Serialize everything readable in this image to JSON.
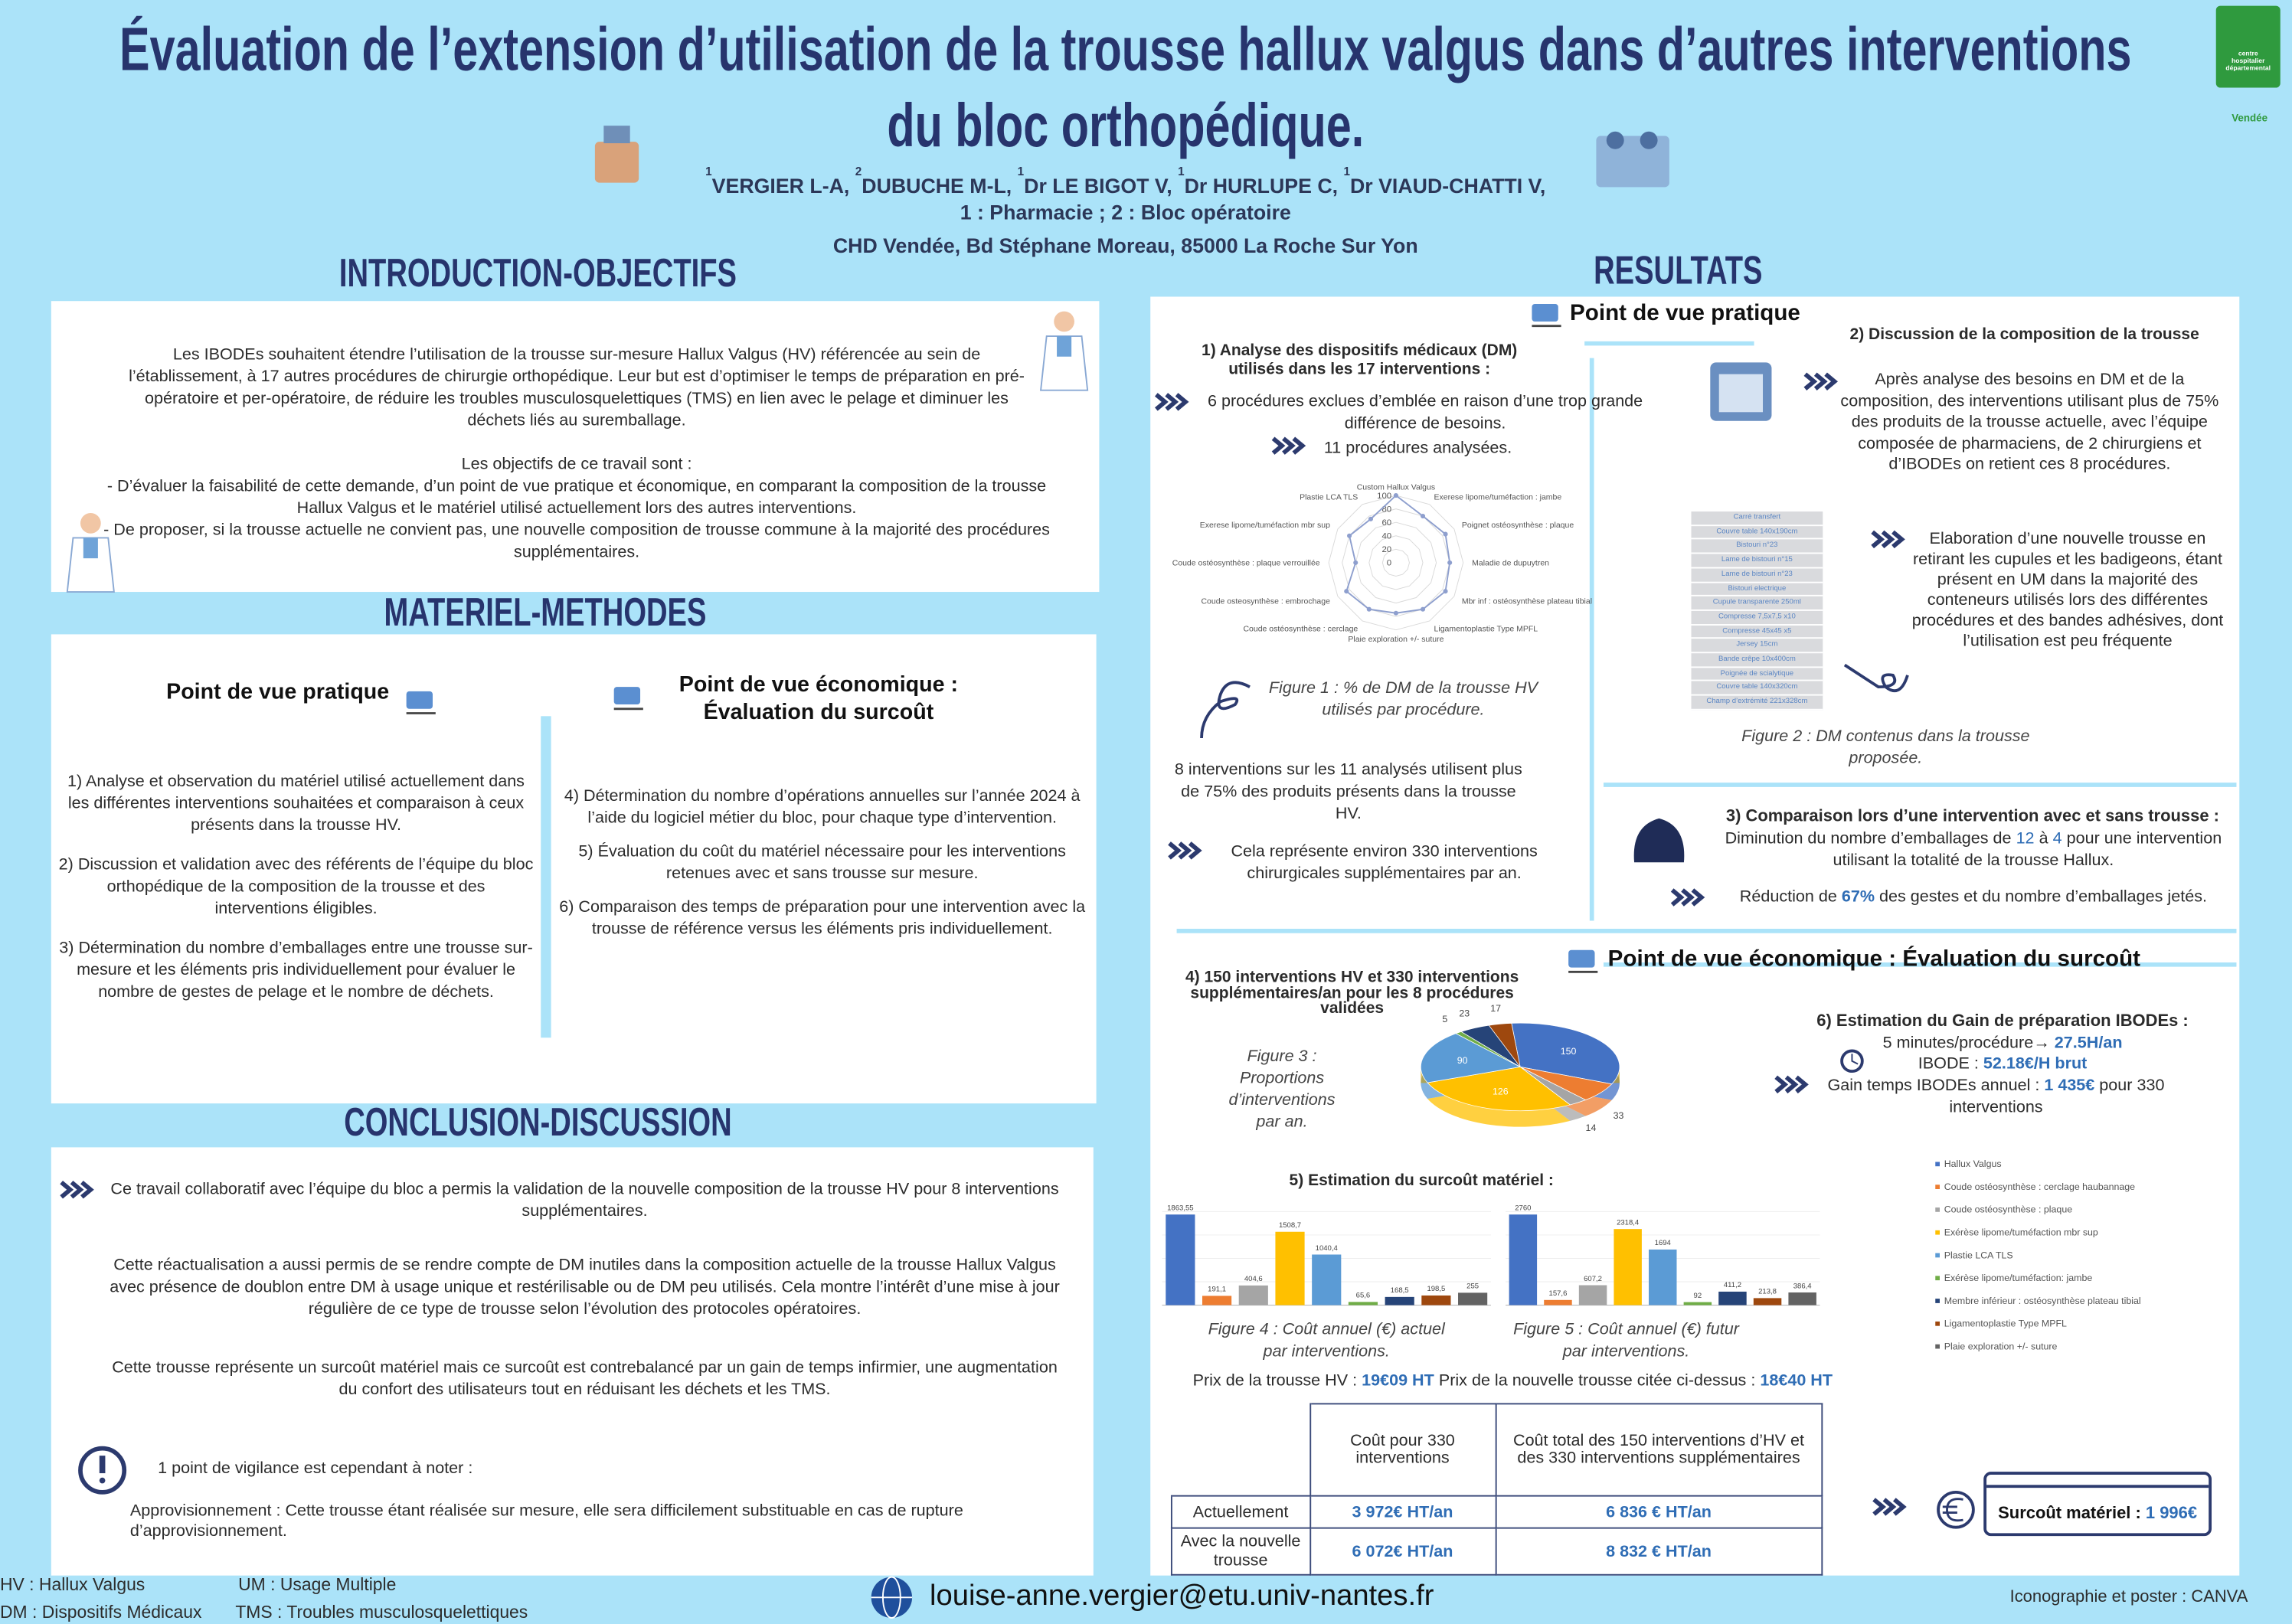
{
  "header": {
    "title_lines": [
      "Évaluation de l’extension d’utilisation de la trousse hallux valgus dans d’autres interventions",
      "du bloc orthopédique."
    ],
    "authors": [
      {
        "sup": "1",
        "name": "VERGIER L-A,"
      },
      {
        "sup": "2",
        "name": "DUBUCHE M-L,"
      },
      {
        "sup": "1",
        "name": "Dr LE BIGOT V,"
      },
      {
        "sup": "1",
        "name": "Dr HURLUPE C,"
      },
      {
        "sup": "1",
        "name": "Dr VIAUD-CHATTI V,"
      }
    ],
    "affiliations": "1 : Pharmacie ; 2 : Bloc opératoire",
    "address": "CHD Vendée, Bd Stéphane Moreau, 85000 La Roche Sur Yon",
    "logo": {
      "lines": [
        "centre",
        "hospitalier",
        "départemental"
      ],
      "place": "Vendée"
    }
  },
  "intro": {
    "heading": "INTRODUCTION-OBJECTIFS",
    "paragraphs": [
      "Les IBODEs souhaitent étendre l’utilisation de la trousse sur-mesure Hallux Valgus (HV) référencée au sein de l’établissement, à 17 autres procédures de chirurgie orthopédique. Leur but est d’optimiser le temps de préparation en pré-opératoire et per-opératoire, de réduire les troubles musculosquelettiques (TMS) en lien avec le pelage et diminuer les déchets liés au suremballage.",
      "Les objectifs de ce travail sont :",
      "- D’évaluer la faisabilité de cette demande, d’un point de vue pratique et économique, en comparant la composition de la trousse Hallux Valgus et le matériel utilisé actuellement lors des autres interventions.",
      "- De proposer, si la trousse actuelle ne convient pas, une nouvelle composition de trousse commune à la majorité des procédures supplémentaires."
    ]
  },
  "methods": {
    "heading": "MATERIEL-METHODES",
    "practical": {
      "title": "Point de vue pratique",
      "items": [
        "1) Analyse et observation du matériel utilisé actuellement dans les différentes interventions souhaitées et comparaison à ceux présents dans la trousse HV.",
        "2) Discussion et validation avec des référents de l’équipe du bloc orthopédique de la composition de la trousse et des interventions éligibles.",
        "3) Détermination du nombre d’emballages entre une trousse sur-mesure et les éléments pris individuellement pour évaluer le nombre de gestes de pelage et le nombre de déchets."
      ]
    },
    "economic": {
      "title_lines": [
        "Point de vue économique :",
        "Évaluation du surcoût"
      ],
      "items": [
        "4) Détermination du nombre d’opérations annuelles sur l’année 2024 à l’aide du logiciel métier du bloc, pour chaque type d’intervention.",
        "5) Évaluation du coût du matériel nécessaire pour les interventions retenues avec et sans trousse sur mesure.",
        "6) Comparaison des temps de préparation pour une intervention avec la trousse de référence versus les éléments pris individuellement."
      ]
    }
  },
  "conclusion": {
    "heading": "CONCLUSION-DISCUSSION",
    "paragraphs": [
      "Ce travail collaboratif avec l’équipe du bloc a permis la validation de la nouvelle composition de la trousse HV pour 8 interventions supplémentaires.",
      "Cette réactualisation a aussi permis de se rendre compte de DM inutiles dans la composition actuelle de la trousse Hallux Valgus avec présence de doublon entre DM à usage unique et restérilisable ou de DM peu utilisés. Cela montre l’intérêt d’une mise à jour régulière de ce type de trousse selon l’évolution des protocoles opératoires.",
      "Cette trousse représente un surcoût matériel mais ce surcoût est contrebalancé par un gain de temps infirmier, une augmentation du confort des utilisateurs tout en réduisant les déchets et les TMS."
    ],
    "vigilance": "1 point de vigilance est cependant à noter :",
    "supply": "Approvisionnement : Cette trousse étant réalisée sur mesure, elle sera difficilement substituable en cas de rupture d’approvisionnement."
  },
  "results": {
    "heading": "RESULTATS",
    "practical_heading": "Point de vue pratique",
    "analysis": {
      "title": "1) Analyse des dispositifs médicaux (DM) utilisés dans les 17 interventions :",
      "excluded": "6 procédures exclues d’emblée en raison d’une trop grande différence de besoins.",
      "analysed": "11 procédures analysées."
    },
    "figure1_caption": "Figure 1 : % de DM de la trousse HV utilisés par procédure.",
    "summary": "8 interventions sur les 11 analysés utilisent plus de 75% des produits présents dans la trousse HV.",
    "extra": "Cela représente environ 330 interventions chirurgicales supplémentaires par an.",
    "discussion": {
      "title": "2) Discussion de la composition de la trousse",
      "retained": "Après analyse des besoins en DM et de la composition, des interventions utilisant plus de 75% des produits de la trousse actuelle, avec l’équipe composée de pharmaciens, de 2 chirurgiens et d’IBODEs on retient ces 8 procédures.",
      "new_kit": "Elaboration d’une nouvelle trousse en retirant les cupules et les badigeons, étant présent en UM dans la majorité des conteneurs utilisés lors des différentes procédures et des bandes adhésives, dont l’utilisation est peu fréquente"
    },
    "figure2_items": [
      "Carré transfert",
      "Couvre table 140x190cm",
      "Bistouri n°23",
      "Lame de bistouri n°15",
      "Lame de bistouri n°23",
      "Bistouri electrique",
      "Cupule transparente 250ml",
      "Compresse 7,5x7,5 x10",
      "Compresse 45x45 x5",
      "Jersey 15cm",
      "Bande crêpe 10x400cm",
      "Poignée de scialytique",
      "Couvre table 140x320cm",
      "Champ d’extrémité 221x328cm"
    ],
    "figure2_caption": "Figure 2 : DM contenus dans la trousse proposée.",
    "comparison": {
      "title": "3) Comparaison lors d’une intervention avec et sans trousse :",
      "packs_before": "Diminution du nombre d’emballages de",
      "packs_from": "12",
      "packs_mid": "à",
      "packs_to": "4",
      "packs_after": "pour une intervention utilisant la totalité de la trousse Hallux.",
      "reduction_before": "Réduction de",
      "reduction_value": "67%",
      "reduction_after": "des gestes et du nombre d’emballages jetés."
    },
    "economic_heading": "Point de vue économique : Évaluation du surcoût",
    "volumes_title": "4) 150 interventions HV et 330 interventions supplémentaires/an pour les 8 procédures validées",
    "figure3_caption": "Figure 3 : Proportions d’interventions par an.",
    "gain": {
      "title": "6) Estimation du Gain de préparation IBODEs :",
      "time_label": "5 minutes/procédure→",
      "time_value": "27.5H/an",
      "rate_label": "IBODE :",
      "rate_value": "52.18€/H brut",
      "annual_label": "Gain temps IBODEs annuel :",
      "annual_value": "1 435€",
      "annual_after": "pour 330 interventions"
    },
    "surcost_title": "5) Estimation du surcoût matériel :",
    "figure4_caption": "Figure 4 : Coût annuel (€) actuel par interventions.",
    "figure5_caption": "Figure 5 : Coût annuel (€) futur par interventions.",
    "prices": {
      "hv_label": "Prix de la trousse HV :",
      "hv_value": "19€09 HT",
      "new_label": "Prix de la nouvelle trousse citée ci-dessus :",
      "new_value": "18€40 HT"
    },
    "table": {
      "columns": [
        "Coût pour 330 interventions",
        "Coût total des 150 interventions d’HV et des 330 interventions supplémentaires"
      ],
      "rows": [
        [
          "Actuellement",
          "3 972€ HT/an",
          "6 836 € HT/an"
        ],
        [
          "Avec la nouvelle trousse",
          "6 072€ HT/an",
          "8 832 € HT/an"
        ]
      ]
    },
    "total": {
      "label": "Surcoût matériel :",
      "value": "1 996€"
    }
  },
  "footer": {
    "abbreviations": [
      "HV : Hallux Valgus",
      "UM : Usage Multiple",
      "DM : Dispositifs Médicaux",
      "TMS : Troubles musculosquelettiques"
    ],
    "email": "louise-anne.vergier@etu.univ-nantes.fr",
    "credit": "Iconographie et poster : CANVA"
  },
  "chart_data": [
    {
      "type": "radar",
      "categories": [
        "Custom Hallux Valgus",
        "Exerese lipome/tuméfaction : jambe",
        "Poignet ostéosynthèse : plaque",
        "Maladie de dupuytren",
        "Mbr inf : ostéosynthèse plateau tibial",
        "Ligamentoplastie Type MPFL",
        "Plaie exploration +/- suture",
        "Coude ostéosynthèse : cerclage",
        "Coude osteosynthèse : embrochage",
        "Coude ostéosynthèse : plaque verrouillée",
        "Exerese lipome/tuméfaction mbr sup",
        "Plastie LCA TLS"
      ],
      "values": [
        100,
        80,
        85,
        80,
        85,
        80,
        75,
        80,
        85,
        60,
        80,
        75
      ],
      "color": "#8e9fce",
      "ylim": [
        0,
        100
      ],
      "yticks": [
        0,
        20,
        40,
        60,
        80,
        100
      ]
    },
    {
      "type": "pie",
      "categories": [
        "Hallux Valgus",
        "Coude ostéosynthèse : cerclage haubannage",
        "Coude ostéosynthèse : plaque",
        "Exérèse lipome/tuméfaction mbr sup",
        "Plastie LCA TLS",
        "Exérèse lipome/tuméfaction: jambe",
        "Membre inférieur : ostéosynthèse plateau tibial",
        "Ligamentoplastie Type MPFL",
        "Plaie exploration +/- suture"
      ],
      "values": [
        150,
        33,
        14,
        126,
        90,
        5,
        23,
        17,
        null
      ],
      "colors": [
        "#4472c4",
        "#ed7d31",
        "#a5a5a5",
        "#ffc000",
        "#5b9bd5",
        "#70ad47",
        "#264478",
        "#9e480e",
        "#636363"
      ]
    },
    {
      "type": "bar",
      "values": [
        1863.55,
        191.1,
        404.6,
        1508.7,
        1040.4,
        65.6,
        168.5,
        198.5,
        255
      ],
      "value_labels": [
        "1863,55",
        "191,1",
        "404,6",
        "1508,7",
        "1040,4",
        "65,6",
        "168,5",
        "198,5",
        "255"
      ],
      "colors": [
        "#4472c4",
        "#ed7d31",
        "#a5a5a5",
        "#ffc000",
        "#5b9bd5",
        "#70ad47",
        "#264478",
        "#9e480e",
        "#636363"
      ]
    },
    {
      "type": "bar",
      "values": [
        2760,
        157.6,
        607.2,
        2318.4,
        1694,
        92,
        411.2,
        213.8,
        386.4
      ],
      "value_labels": [
        "2760",
        "157,6",
        "607,2",
        "2318,4",
        "1694",
        "92",
        "411,2",
        "213,8",
        "386,4"
      ],
      "colors": [
        "#4472c4",
        "#ed7d31",
        "#a5a5a5",
        "#ffc000",
        "#5b9bd5",
        "#70ad47",
        "#264478",
        "#9e480e",
        "#636363"
      ]
    }
  ]
}
